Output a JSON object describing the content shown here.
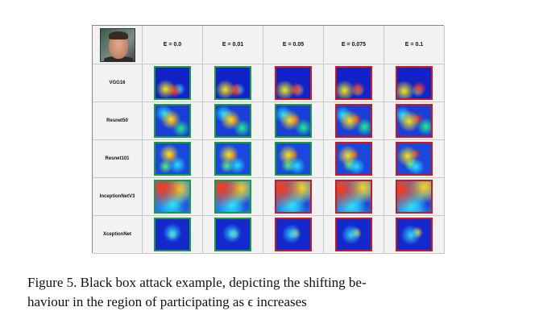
{
  "figure": {
    "column_headers": [
      "E = 0.0",
      "E = 0.01",
      "E = 0.05",
      "E = 0.075",
      "E = 0.1"
    ],
    "row_labels": [
      "VGG16",
      "Resnet50",
      "Resnet101",
      "InceptionNetV3",
      "XceptionNet"
    ],
    "cell_border_status": [
      [
        "green",
        "green",
        "red",
        "red",
        "red"
      ],
      [
        "green",
        "green",
        "green",
        "red",
        "red"
      ],
      [
        "green",
        "green",
        "green",
        "red",
        "red"
      ],
      [
        "green",
        "green",
        "red",
        "red",
        "red"
      ],
      [
        "green",
        "green",
        "red",
        "red",
        "red"
      ]
    ],
    "status_colors": {
      "green": "#1a9c3c",
      "red": "#d0171c"
    }
  },
  "caption": {
    "line1": "Figure 5.  Black box attack example, depicting the shifting be-",
    "line2": "haviour in the region of participating as ϵ increases"
  }
}
